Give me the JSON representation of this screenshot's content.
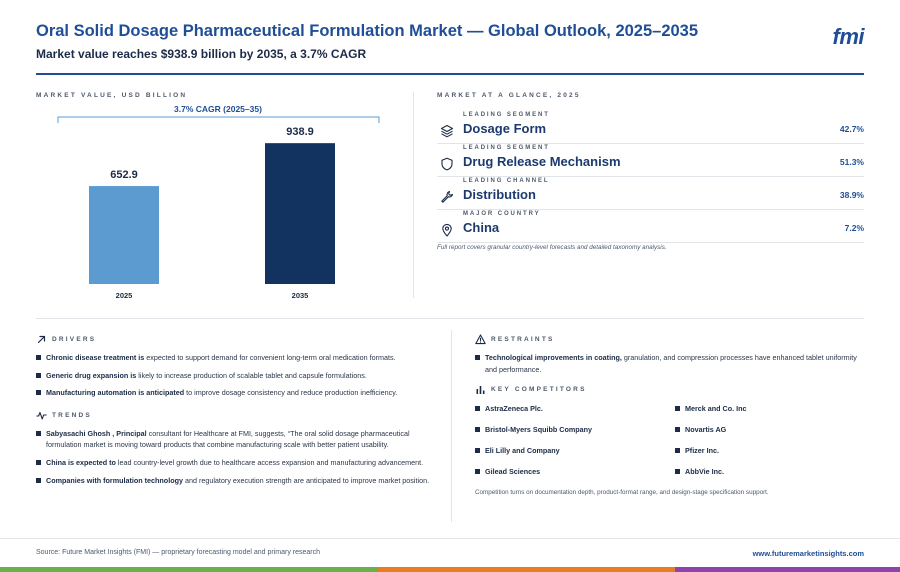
{
  "header": {
    "title": "Oral Solid Dosage Pharmaceutical Formulation Market — Global Outlook, 2025–2035",
    "subtitle": "Market value reaches $938.9 billion by 2035, a 3.7% CAGR",
    "logo": "fmi"
  },
  "chart_panel": {
    "label": "MARKET VALUE, USD BILLION"
  },
  "chart_data": {
    "type": "bar",
    "categories": [
      "2025",
      "2035"
    ],
    "values": [
      652.9,
      938.9
    ],
    "value_labels": [
      "652.9",
      "938.9"
    ],
    "annotation": "3.7% CAGR (2025–35)",
    "unit": "USD billion",
    "colors": [
      "#5b9bd0",
      "#12325f"
    ],
    "ylim": [
      0,
      1000
    ],
    "grid": false,
    "legend": "none"
  },
  "glance": {
    "label": "MARKET AT A GLANCE, 2025",
    "rows": [
      {
        "tag": "LEADING SEGMENT",
        "name": "Dosage Form",
        "value": "42.7%",
        "icon": "layers-icon"
      },
      {
        "tag": "LEADING SEGMENT",
        "name": "Drug Release Mechanism",
        "value": "51.3%",
        "icon": "shield-icon"
      },
      {
        "tag": "LEADING CHANNEL",
        "name": "Distribution",
        "value": "38.9%",
        "icon": "wrench-icon"
      },
      {
        "tag": "MAJOR COUNTRY",
        "name": "China",
        "value": "7.2%",
        "icon": "map-pin-icon"
      }
    ],
    "note": "Full report covers granular country-level forecasts and detailed taxonomy analysis."
  },
  "drivers": {
    "label": "DRIVERS",
    "items": [
      {
        "bold": "Chronic disease treatment is",
        "text": " expected to support demand for convenient long-term oral medication formats."
      },
      {
        "bold": "Generic drug expansion is",
        "text": " likely to increase production of scalable tablet and capsule formulations."
      },
      {
        "bold": "Manufacturing automation is anticipated",
        "text": " to improve dosage consistency and reduce production inefficiency."
      }
    ]
  },
  "trends": {
    "label": "TRENDS",
    "items": [
      {
        "bold": "Sabyasachi Ghosh , Principal",
        "text": " consultant for Healthcare at FMI, suggests, “The oral solid dosage pharmaceutical formulation market is moving toward products that combine manufacturing scale with better patient usability."
      },
      {
        "bold": "China is expected to",
        "text": " lead country-level growth due to healthcare access expansion and manufacturing advancement."
      },
      {
        "bold": "Companies with formulation technology",
        "text": " and regulatory execution strength are anticipated to improve market position."
      }
    ]
  },
  "restraints": {
    "label": "RESTRAINTS",
    "items": [
      {
        "bold": "Technological improvements in coating,",
        "text": " granulation, and compression processes have enhanced tablet uniformity and performance."
      }
    ]
  },
  "competitors": {
    "label": "KEY COMPETITORS",
    "items": [
      "AstraZeneca Plc.",
      "Merck and Co. Inc",
      "Bristol-Myers Squibb Company",
      "Novartis AG",
      "Eli Lilly and Company",
      "Pfizer Inc.",
      "Gilead Sciences",
      "AbbVie Inc."
    ],
    "note": "Competition turns on documentation depth, product-format range, and design-stage specification support."
  },
  "footer": {
    "source": "Source: Future Market Insights (FMI) — proprietary forecasting model and primary research",
    "url": "www.futuremarketinsights.com",
    "bar_colors": [
      "#6ab04c",
      "#e67e22",
      "#8e44ad"
    ]
  }
}
